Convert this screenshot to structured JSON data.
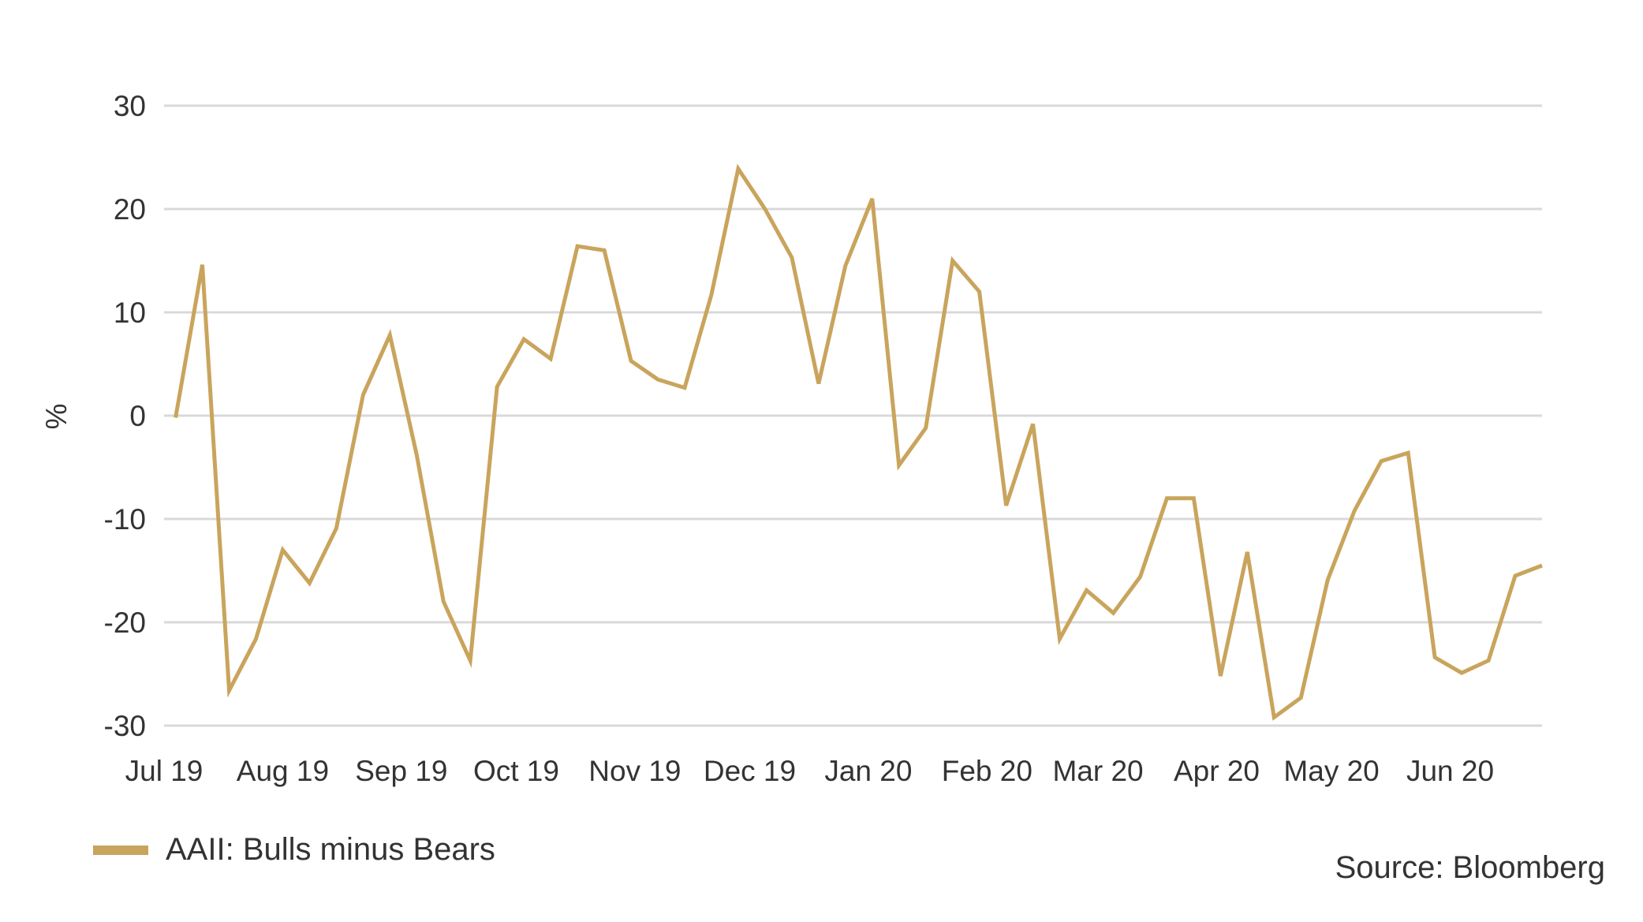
{
  "colors": {
    "series": "#C9A45C",
    "grid": "#D9D9D9",
    "text": "#333333"
  },
  "chart_data": {
    "type": "line",
    "title": "",
    "xlabel": "",
    "ylabel": "%",
    "ylim": [
      -30,
      30
    ],
    "yticks": [
      30,
      20,
      10,
      0,
      -10,
      -20,
      -30
    ],
    "grid": "horizontal",
    "legend_position": "bottom-left",
    "x_tick_labels": [
      "Jul 19",
      "Aug 19",
      "Sep 19",
      "Oct 19",
      "Nov 19",
      "Dec 19",
      "Jan 20",
      "Feb 20",
      "Mar 20",
      "Apr 20",
      "May 20",
      "Jun 20"
    ],
    "series": [
      {
        "name": "AAII: Bulls minus Bears",
        "color": "#C9A45C",
        "x": [
          "2019-07-04",
          "2019-07-11",
          "2019-07-18",
          "2019-07-25",
          "2019-08-01",
          "2019-08-08",
          "2019-08-15",
          "2019-08-22",
          "2019-08-29",
          "2019-09-05",
          "2019-09-12",
          "2019-09-19",
          "2019-09-26",
          "2019-10-03",
          "2019-10-10",
          "2019-10-17",
          "2019-10-24",
          "2019-10-31",
          "2019-11-07",
          "2019-11-14",
          "2019-11-21",
          "2019-11-28",
          "2019-12-05",
          "2019-12-12",
          "2019-12-19",
          "2019-12-26",
          "2020-01-02",
          "2020-01-09",
          "2020-01-16",
          "2020-01-23",
          "2020-01-30",
          "2020-02-06",
          "2020-02-13",
          "2020-02-20",
          "2020-02-27",
          "2020-03-05",
          "2020-03-12",
          "2020-03-19",
          "2020-03-26",
          "2020-04-02",
          "2020-04-09",
          "2020-04-16",
          "2020-04-23",
          "2020-04-30",
          "2020-05-07",
          "2020-05-14",
          "2020-05-21",
          "2020-05-28",
          "2020-06-04",
          "2020-06-11",
          "2020-06-18",
          "2020-06-25"
        ],
        "values": [
          -0.2,
          14.6,
          -26.6,
          -21.6,
          -13.0,
          -16.2,
          -10.9,
          2.0,
          7.8,
          -3.8,
          -18.0,
          -23.7,
          2.8,
          7.4,
          5.5,
          16.4,
          16.0,
          5.3,
          3.5,
          2.7,
          11.7,
          23.9,
          20.0,
          15.3,
          3.1,
          14.5,
          21.0,
          -4.8,
          -1.2,
          15.0,
          12.0,
          -8.7,
          -0.8,
          -21.6,
          -16.9,
          -19.1,
          -15.6,
          -8.0,
          -8.0,
          -25.2,
          -13.2,
          -29.2,
          -27.3,
          -15.9,
          -9.2,
          -4.4,
          -3.6,
          -23.4,
          -24.9,
          -23.7,
          -15.5,
          -14.5
        ]
      }
    ]
  },
  "legend": {
    "label": "AAII: Bulls minus Bears"
  },
  "source": {
    "text": "Source: Bloomberg"
  }
}
